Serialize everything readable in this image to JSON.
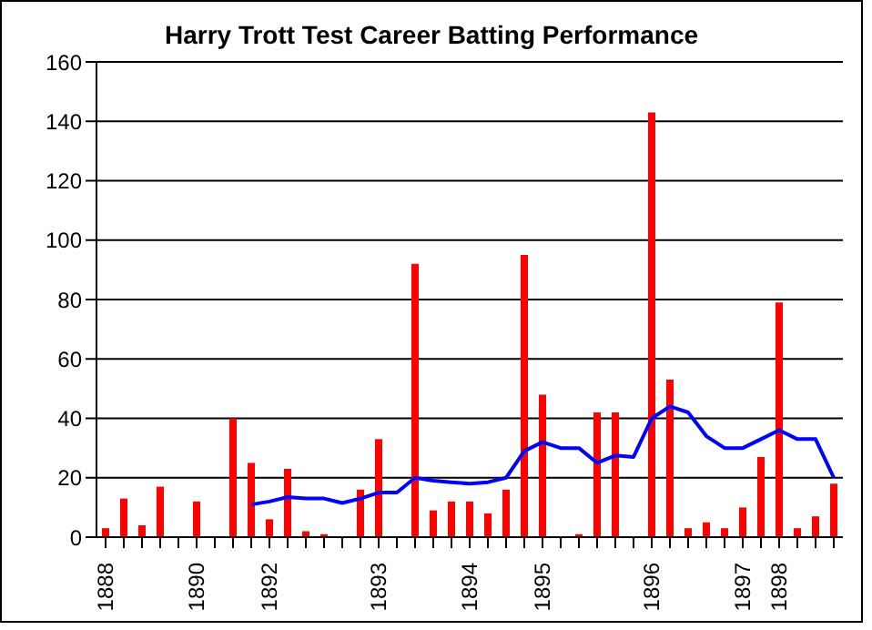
{
  "chart_data": {
    "type": "bar",
    "title": "Harry Trott Test Career Batting Performance",
    "categories": [
      "1888",
      null,
      null,
      null,
      null,
      "1890",
      null,
      null,
      null,
      "1892",
      null,
      null,
      null,
      null,
      null,
      "1893",
      null,
      null,
      null,
      null,
      "1894",
      null,
      null,
      null,
      "1895",
      null,
      null,
      null,
      null,
      null,
      "1896",
      null,
      null,
      null,
      null,
      "1897",
      null,
      "1898",
      null,
      null,
      null
    ],
    "series": [
      {
        "color": "#ff0000",
        "values": [
          3,
          13,
          4,
          17,
          null,
          12,
          null,
          40,
          25,
          6,
          23,
          2,
          1,
          null,
          16,
          33,
          null,
          92,
          9,
          12,
          12,
          8,
          16,
          95,
          48,
          null,
          1,
          42,
          42,
          null,
          143,
          53,
          3,
          5,
          3,
          10,
          27,
          79,
          3,
          7,
          18
        ]
      },
      {
        "type": "line",
        "color": "#0000ff",
        "values": [
          null,
          null,
          null,
          null,
          null,
          null,
          null,
          null,
          11,
          12,
          13.5,
          13,
          13,
          11.5,
          13,
          15,
          15,
          20,
          19,
          18.5,
          18,
          18.5,
          20,
          29,
          32,
          30,
          30,
          25,
          27.5,
          27,
          40,
          44,
          42,
          34,
          30,
          30,
          33,
          36,
          33,
          33,
          20
        ]
      }
    ],
    "ylim": [
      0,
      160
    ],
    "yticks": [
      0,
      20,
      40,
      60,
      80,
      100,
      120,
      140,
      160
    ],
    "grid": "y",
    "marker": "none"
  }
}
